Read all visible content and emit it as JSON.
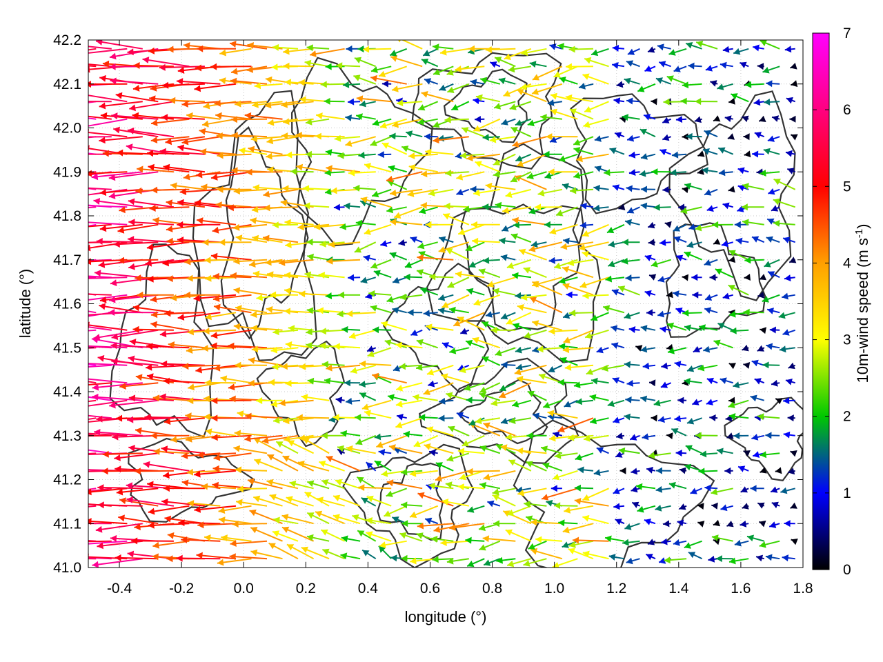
{
  "chart_data": {
    "type": "vector_field",
    "xlabel": "longitude (°)",
    "ylabel": "latitude (°)",
    "xlim": [
      -0.5,
      1.8
    ],
    "ylim": [
      41.0,
      42.2
    ],
    "x_ticks": [
      -0.4,
      -0.2,
      0.0,
      0.2,
      0.4,
      0.6,
      0.8,
      1.0,
      1.2,
      1.4,
      1.6,
      1.8
    ],
    "x_tick_labels": [
      "-0.4",
      "-0.2",
      "0.0",
      "0.2",
      "0.4",
      "0.6",
      "0.8",
      "1.0",
      "1.2",
      "1.4",
      "1.6",
      "1.8"
    ],
    "y_ticks": [
      41.0,
      41.1,
      41.2,
      41.3,
      41.4,
      41.5,
      41.6,
      41.7,
      41.8,
      41.9,
      42.0,
      42.1,
      42.2
    ],
    "y_tick_labels": [
      "41.0",
      "41.1",
      "41.2",
      "41.3",
      "41.4",
      "41.5",
      "41.6",
      "41.7",
      "41.8",
      "41.9",
      "42.0",
      "42.1",
      "42.2"
    ],
    "grid": true,
    "colorbar": {
      "label": "10m-wind speed (m s",
      "label_superscript": "-1",
      "label_suffix": ")",
      "range": [
        0,
        7
      ],
      "ticks": [
        0,
        1,
        2,
        3,
        4,
        5,
        6,
        7
      ],
      "tick_labels": [
        "0",
        "1",
        "2",
        "3",
        "4",
        "5",
        "6",
        "7"
      ],
      "colors": [
        "#000000",
        "#0000ff",
        "#00c800",
        "#ffff00",
        "#ffa000",
        "#ff0000",
        "#ff00ff"
      ]
    },
    "contour_color": "#333333",
    "wind_field": {
      "predominant_direction": "easterly (arrows point west)",
      "regions": [
        {
          "lon": [
            -0.5,
            0.3
          ],
          "lat": [
            41.0,
            42.2
          ],
          "speed_range": [
            3,
            7
          ]
        },
        {
          "lon": [
            0.3,
            1.2
          ],
          "lat": [
            41.0,
            42.2
          ],
          "speed_range": [
            1,
            4
          ]
        },
        {
          "lon": [
            1.2,
            1.8
          ],
          "lat": [
            41.0,
            42.2
          ],
          "speed_range": [
            0,
            2.5
          ]
        }
      ]
    }
  }
}
